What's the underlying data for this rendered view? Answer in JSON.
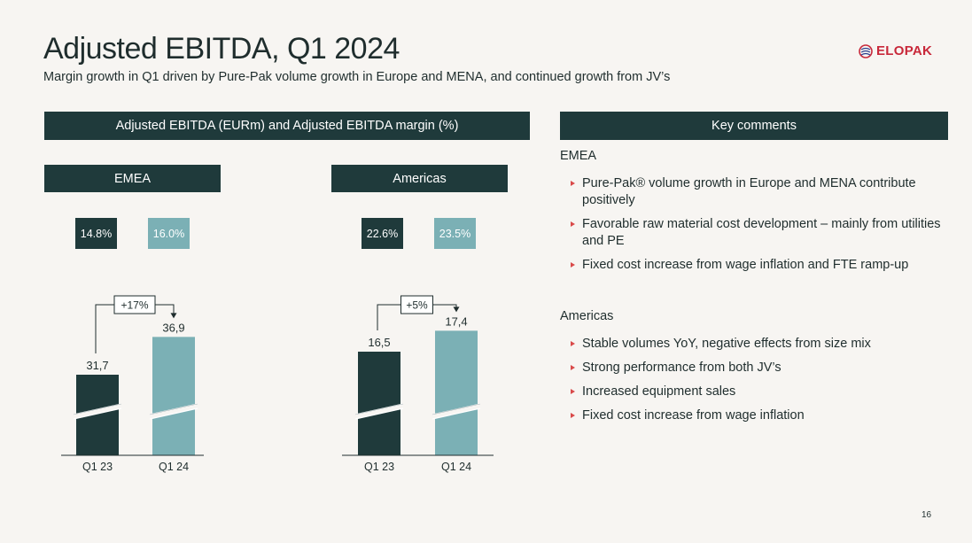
{
  "title": "Adjusted EBITDA, Q1 2024",
  "subtitle": "Margin growth in Q1 driven by Pure-Pak volume growth in Europe and MENA, and continued growth from JV’s",
  "logo_text": "ELOPAK",
  "chart_header": "Adjusted EBITDA (EURm) and Adjusted EBITDA margin (%)",
  "comments_header": "Key comments",
  "colors": {
    "dark": "#1f3a3b",
    "light": "#7bb0b5",
    "accent": "#d94a4a",
    "logo": "#c8283a"
  },
  "panels": [
    {
      "label": "EMEA",
      "margins": [
        "14.8%",
        "16.0%"
      ]
    },
    {
      "label": "Americas",
      "margins": [
        "22.6%",
        "23.5%"
      ]
    }
  ],
  "chart_data": [
    {
      "type": "bar",
      "title": "EMEA",
      "categories": [
        "Q1 23",
        "Q1 24"
      ],
      "values": [
        31.7,
        36.9
      ],
      "value_labels": [
        "31,7",
        "36,9"
      ],
      "margins": [
        "14.8%",
        "16.0%"
      ],
      "growth_label": "+17%",
      "axis_break": true
    },
    {
      "type": "bar",
      "title": "Americas",
      "categories": [
        "Q1 23",
        "Q1 24"
      ],
      "values": [
        16.5,
        17.4
      ],
      "value_labels": [
        "16,5",
        "17,4"
      ],
      "margins": [
        "22.6%",
        "23.5%"
      ],
      "growth_label": "+5%",
      "axis_break": true
    }
  ],
  "comments": [
    {
      "region": "EMEA",
      "items": [
        "Pure-Pak® volume growth in Europe and MENA contribute positively",
        "Favorable raw material cost development – mainly from utilities and PE",
        "Fixed cost increase from wage inflation and FTE ramp-up"
      ]
    },
    {
      "region": "Americas",
      "items": [
        "Stable volumes YoY, negative effects from size mix",
        "Strong performance from both JV’s",
        "Increased equipment sales",
        "Fixed cost increase from wage inflation"
      ]
    }
  ],
  "page_number": "16"
}
